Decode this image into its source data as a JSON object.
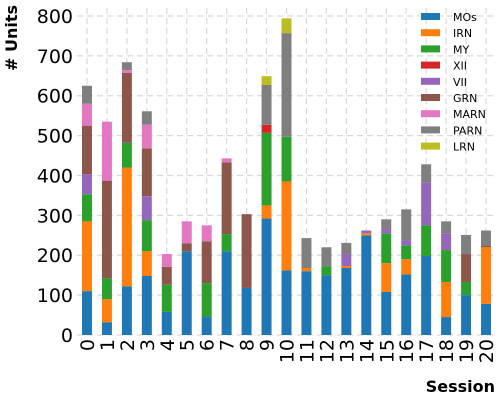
{
  "chart_data": {
    "type": "bar",
    "stacked": true,
    "xlabel": "Session",
    "ylabel": "# Units",
    "ylim": [
      0,
      820
    ],
    "yticks": [
      0,
      100,
      200,
      300,
      400,
      500,
      600,
      700,
      800
    ],
    "grid": true,
    "legend_position": "top-right",
    "categories": [
      "0",
      "1",
      "2",
      "3",
      "4",
      "5",
      "6",
      "7",
      "8",
      "9",
      "10",
      "11",
      "12",
      "13",
      "14",
      "15",
      "16",
      "17",
      "18",
      "19",
      "20"
    ],
    "series": [
      {
        "name": "MOs",
        "color": "#1f77b4",
        "values": [
          110,
          32,
          122,
          148,
          58,
          210,
          45,
          210,
          118,
          292,
          162,
          160,
          150,
          168,
          250,
          108,
          152,
          198,
          45,
          100,
          78
        ]
      },
      {
        "name": "IRN",
        "color": "#ff7f0e",
        "values": [
          175,
          58,
          298,
          62,
          0,
          0,
          0,
          0,
          0,
          33,
          223,
          8,
          0,
          5,
          5,
          72,
          38,
          0,
          88,
          0,
          142
        ]
      },
      {
        "name": "MY",
        "color": "#2ca02c",
        "values": [
          68,
          52,
          62,
          78,
          68,
          0,
          85,
          43,
          0,
          182,
          112,
          0,
          22,
          0,
          0,
          75,
          35,
          77,
          80,
          33,
          0
        ]
      },
      {
        "name": "XII",
        "color": "#d62728",
        "values": [
          0,
          0,
          0,
          0,
          0,
          0,
          0,
          0,
          0,
          20,
          0,
          0,
          0,
          0,
          0,
          0,
          0,
          0,
          0,
          0,
          0
        ]
      },
      {
        "name": "VII",
        "color": "#9467bd",
        "values": [
          50,
          0,
          0,
          60,
          0,
          0,
          0,
          0,
          0,
          0,
          0,
          0,
          0,
          30,
          7,
          12,
          13,
          108,
          42,
          0,
          0
        ]
      },
      {
        "name": "GRN",
        "color": "#8c564b",
        "values": [
          122,
          245,
          175,
          120,
          45,
          20,
          105,
          180,
          185,
          0,
          0,
          0,
          0,
          0,
          0,
          0,
          0,
          0,
          0,
          70,
          5
        ]
      },
      {
        "name": "MARN",
        "color": "#e377c2",
        "values": [
          55,
          148,
          7,
          60,
          32,
          55,
          40,
          10,
          0,
          0,
          0,
          0,
          0,
          0,
          0,
          0,
          0,
          0,
          0,
          0,
          0
        ]
      },
      {
        "name": "PARN",
        "color": "#7f7f7f",
        "values": [
          45,
          0,
          20,
          33,
          0,
          0,
          0,
          0,
          0,
          100,
          260,
          75,
          48,
          28,
          0,
          23,
          77,
          45,
          30,
          48,
          37
        ]
      },
      {
        "name": "LRN",
        "color": "#bcbd22",
        "values": [
          0,
          0,
          0,
          0,
          0,
          0,
          0,
          0,
          0,
          22,
          37,
          0,
          0,
          0,
          0,
          0,
          0,
          0,
          0,
          0,
          0
        ]
      }
    ]
  }
}
